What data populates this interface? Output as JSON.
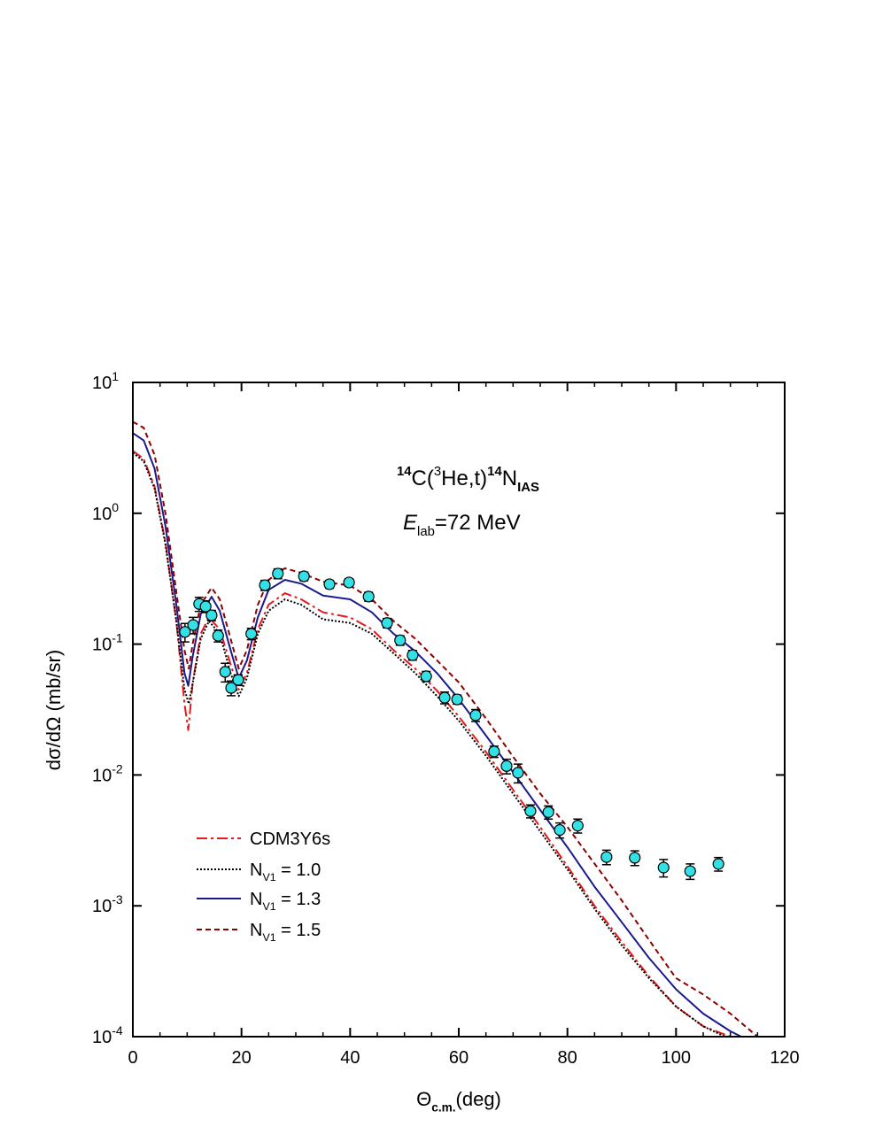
{
  "chart_data": {
    "type": "line",
    "reaction": [
      "14",
      "C(",
      "3",
      "He,t)",
      "14",
      "N",
      "IAS"
    ],
    "energy": [
      "E",
      "lab",
      "=72 MeV"
    ],
    "ylabel": "dσ/dΩ (mb/sr)",
    "xlabel": [
      "Θ",
      "c.m.",
      "(deg)"
    ],
    "xlim": [
      0,
      120
    ],
    "xticks": [
      0,
      20,
      40,
      60,
      80,
      100,
      120
    ],
    "xminorticks": [
      5,
      10,
      15,
      25,
      30,
      35,
      45,
      50,
      55,
      65,
      70,
      75,
      85,
      90,
      95,
      105,
      110,
      115
    ],
    "ylim": [
      0.0001,
      10
    ],
    "ylog": true,
    "yticks": [
      {
        "value": 10,
        "label": "10",
        "power": "1"
      },
      {
        "value": 1,
        "label": "10",
        "power": "0"
      },
      {
        "value": 0.1,
        "label": "10",
        "power": "-1"
      },
      {
        "value": 0.01,
        "label": "10",
        "power": "-2"
      },
      {
        "value": 0.001,
        "label": "10",
        "power": "-3"
      },
      {
        "value": 0.0001,
        "label": "10",
        "power": "-4"
      }
    ],
    "series": [
      {
        "name": [
          "CDM3Y6s"
        ],
        "kind": "line",
        "color": "#e41a1c",
        "dash": "12 4 3 4",
        "x": [
          0,
          2,
          4,
          6,
          8,
          9.5,
          10.2,
          11,
          12.5,
          14,
          16,
          18,
          19.5,
          21,
          23,
          25,
          28,
          31,
          35,
          40,
          44,
          48,
          52,
          56,
          60,
          65,
          70,
          75,
          80,
          85,
          90,
          95,
          100,
          105,
          110
        ],
        "values": [
          3.0,
          2.6,
          1.6,
          0.6,
          0.15,
          0.035,
          0.022,
          0.05,
          0.12,
          0.16,
          0.13,
          0.07,
          0.045,
          0.06,
          0.13,
          0.2,
          0.245,
          0.22,
          0.175,
          0.16,
          0.13,
          0.09,
          0.065,
          0.044,
          0.028,
          0.015,
          0.0077,
          0.004,
          0.002,
          0.001,
          0.00053,
          0.00029,
          0.00017,
          0.00012,
          0.0001
        ]
      },
      {
        "name": [
          "N",
          "V1",
          " = 1.0"
        ],
        "kind": "line",
        "color": "#000000",
        "dash": "2 2",
        "x": [
          0,
          2,
          4,
          6,
          8,
          9.5,
          10.3,
          11,
          12.5,
          14,
          16,
          18,
          19.5,
          21,
          23,
          25,
          28,
          31,
          35,
          40,
          44,
          48,
          52,
          56,
          60,
          65,
          70,
          75,
          80,
          85,
          90,
          95,
          100,
          105,
          109
        ],
        "values": [
          2.9,
          2.5,
          1.55,
          0.58,
          0.15,
          0.045,
          0.035,
          0.05,
          0.11,
          0.15,
          0.12,
          0.06,
          0.04,
          0.055,
          0.12,
          0.18,
          0.22,
          0.2,
          0.155,
          0.145,
          0.12,
          0.085,
          0.06,
          0.04,
          0.026,
          0.014,
          0.0072,
          0.0037,
          0.0019,
          0.00095,
          0.0005,
          0.00028,
          0.00017,
          0.00012,
          0.0001
        ]
      },
      {
        "name": [
          "N",
          "V1",
          " = 1.3"
        ],
        "kind": "line",
        "color": "#1a1a8c",
        "dash": "",
        "x": [
          0,
          2,
          4,
          6,
          8,
          9.5,
          10.2,
          11,
          12.5,
          14.5,
          16,
          18,
          19.5,
          21,
          23,
          25,
          28,
          31,
          35,
          40,
          44,
          48,
          52,
          56,
          60,
          65,
          70,
          75,
          80,
          85,
          90,
          95,
          100,
          105,
          110,
          112
        ],
        "values": [
          4.1,
          3.6,
          2.2,
          0.8,
          0.2,
          0.06,
          0.048,
          0.08,
          0.17,
          0.23,
          0.18,
          0.09,
          0.055,
          0.075,
          0.16,
          0.26,
          0.31,
          0.29,
          0.235,
          0.22,
          0.175,
          0.12,
          0.088,
          0.06,
          0.038,
          0.02,
          0.0105,
          0.0054,
          0.0028,
          0.0014,
          0.00075,
          0.0004,
          0.00023,
          0.00015,
          0.00011,
          0.0001
        ]
      },
      {
        "name": [
          "N",
          "V1",
          " = 1.5"
        ],
        "kind": "line",
        "color": "#8b0000",
        "dash": "6 4",
        "x": [
          0,
          2,
          4,
          6,
          8,
          9.5,
          10.3,
          11,
          12.5,
          14.5,
          16,
          18,
          19.5,
          21,
          23,
          25,
          28,
          31,
          35,
          40,
          44,
          48,
          52,
          56,
          60,
          65,
          70,
          75,
          80,
          85,
          90,
          95,
          100,
          105,
          110,
          115
        ],
        "values": [
          5.0,
          4.5,
          2.8,
          1.0,
          0.25,
          0.09,
          0.065,
          0.1,
          0.2,
          0.27,
          0.22,
          0.11,
          0.065,
          0.09,
          0.2,
          0.31,
          0.38,
          0.35,
          0.3,
          0.28,
          0.22,
          0.15,
          0.11,
          0.075,
          0.051,
          0.027,
          0.0138,
          0.0072,
          0.004,
          0.0021,
          0.0011,
          0.00055,
          0.00028,
          0.00021,
          0.00015,
          0.0001
        ]
      },
      {
        "kind": "scatter",
        "color": "#33e0e6",
        "x": [
          9.6,
          11.1,
          12.2,
          13.4,
          14.5,
          15.7,
          17.0,
          18.1,
          19.4,
          21.8,
          24.3,
          26.7,
          31.5,
          36.2,
          39.8,
          43.4,
          46.8,
          49.2,
          51.5,
          54.0,
          57.4,
          59.7,
          63.1,
          66.5,
          68.8,
          70.9,
          73.2,
          76.5,
          78.6,
          81.9,
          87.2,
          92.4,
          97.7,
          102.6,
          107.8
        ],
        "values": [
          0.124,
          0.14,
          0.203,
          0.194,
          0.166,
          0.116,
          0.0614,
          0.0463,
          0.0533,
          0.12,
          0.282,
          0.346,
          0.33,
          0.287,
          0.296,
          0.231,
          0.145,
          0.107,
          0.0824,
          0.0568,
          0.039,
          0.0378,
          0.0286,
          0.0151,
          0.0117,
          0.0104,
          0.0053,
          0.0052,
          0.0038,
          0.0041,
          0.00236,
          0.00233,
          0.00196,
          0.00184,
          0.00209
        ],
        "errors": [
          0.02,
          0.02,
          0.025,
          0.02,
          0.015,
          0.012,
          0.01,
          0.006,
          0.005,
          0.012,
          0.025,
          0.03,
          0.025,
          0.02,
          0.02,
          0.018,
          0.012,
          0.009,
          0.007,
          0.005,
          0.004,
          0.003,
          0.003,
          0.0015,
          0.0015,
          0.0017,
          0.0006,
          0.0006,
          0.0005,
          0.0005,
          0.0003,
          0.0003,
          0.0003,
          0.00025,
          0.00025
        ]
      }
    ]
  }
}
